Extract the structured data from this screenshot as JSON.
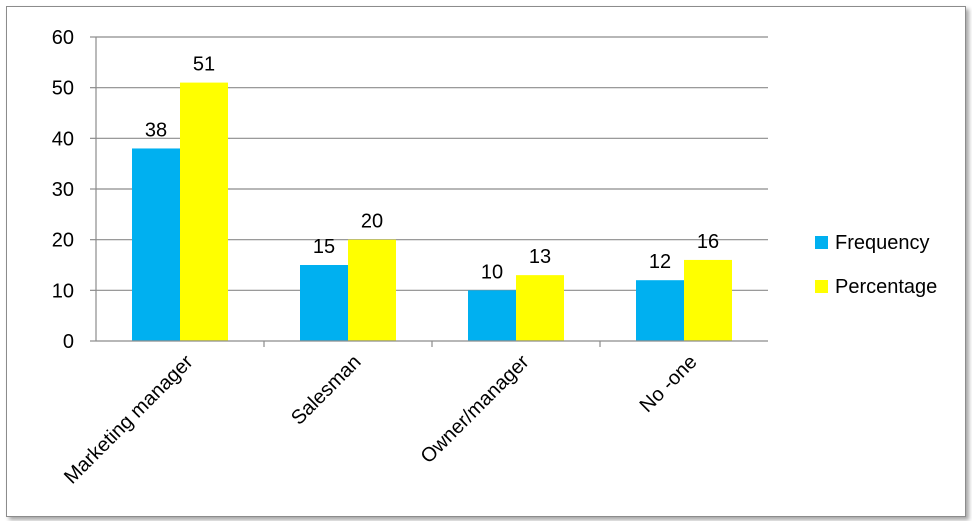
{
  "chart_data": {
    "type": "bar",
    "categories": [
      "Marketing manager",
      "Salesman",
      "Owner/manager",
      "No -one"
    ],
    "series": [
      {
        "name": "Frequency",
        "values": [
          38,
          15,
          10,
          12
        ],
        "color": "#00B0F0"
      },
      {
        "name": "Percentage",
        "values": [
          51,
          20,
          13,
          16
        ],
        "color": "#FFFF00"
      }
    ],
    "ylim": [
      0,
      60
    ],
    "yticks": [
      0,
      10,
      20,
      30,
      40,
      50,
      60
    ],
    "grid": true,
    "legend_position": "right",
    "title": "",
    "xlabel": "",
    "ylabel": ""
  }
}
